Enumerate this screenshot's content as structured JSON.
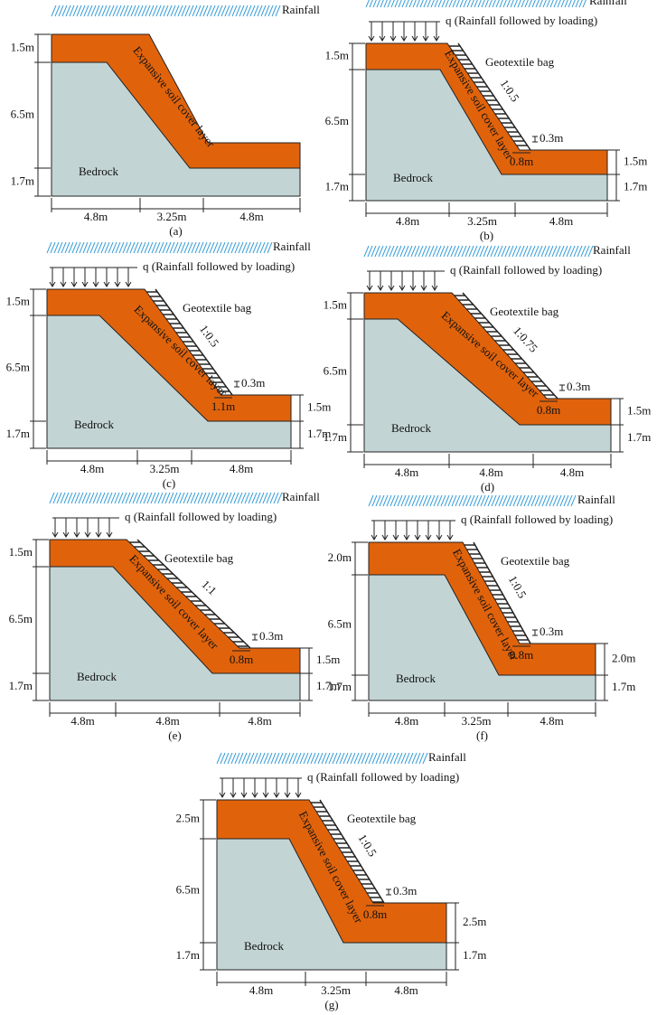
{
  "panels": [
    {
      "label": "(a)",
      "rainfall": "Rainfall",
      "left_dims": [
        "1.5m",
        "6.5m",
        "1.7m"
      ],
      "bottom_dims": [
        "4.8m",
        "3.25m",
        "4.8m"
      ],
      "bedrock": "Bedrock",
      "cover": "Expansive soil cover layer"
    },
    {
      "label": "(b)",
      "rainfall": "Rainfall",
      "loading": "q (Rainfall followed by loading)",
      "left_dims": [
        "1.5m",
        "6.5m",
        "1.7m"
      ],
      "right_dims": [
        "1.5m",
        "1.7m"
      ],
      "bottom_dims": [
        "4.8m",
        "3.25m",
        "4.8m"
      ],
      "bedrock": "Bedrock",
      "cover": "Expansive soil cover layer",
      "bag": "Geotextile bag",
      "slope_ratio": "1:0.5",
      "bag_thickness": "0.3m",
      "bag_width": "0.8m"
    },
    {
      "label": "(c)",
      "rainfall": "Rainfall",
      "loading": "q (Rainfall followed by loading)",
      "left_dims": [
        "1.5m",
        "6.5m",
        "1.7m"
      ],
      "right_dims": [
        "1.5m",
        "1.7m"
      ],
      "bottom_dims": [
        "4.8m",
        "3.25m",
        "4.8m"
      ],
      "bedrock": "Bedrock",
      "cover": "Expansive soil cover layer",
      "bag": "Geotextile bag",
      "slope_ratio": "1:0.5",
      "bag_thickness": "0.3m",
      "bag_width": "1.1m"
    },
    {
      "label": "(d)",
      "rainfall": "Rainfall",
      "loading": "q (Rainfall followed by loading)",
      "left_dims": [
        "1.5m",
        "6.5m",
        "1.7m"
      ],
      "right_dims": [
        "1.5m",
        "1.7m"
      ],
      "bottom_dims": [
        "4.8m",
        "4.8m",
        "4.8m"
      ],
      "bedrock": "Bedrock",
      "cover": "Expansive soil cover layer",
      "bag": "Geotextile bag",
      "slope_ratio": "1:0.75",
      "bag_thickness": "0.3m",
      "bag_width": "0.8m"
    },
    {
      "label": "(e)",
      "rainfall": "Rainfall",
      "loading": "q (Rainfall followed by loading)",
      "left_dims": [
        "1.5m",
        "6.5m",
        "1.7m"
      ],
      "right_dims": [
        "1.5m",
        "1.7m"
      ],
      "bottom_dims": [
        "4.8m",
        "4.8m",
        "4.8m"
      ],
      "bedrock": "Bedrock",
      "cover": "Expansive soil cover layer",
      "bag": "Geotextile bag",
      "slope_ratio": "1:1",
      "bag_thickness": "0.3m",
      "bag_width": "0.8m"
    },
    {
      "label": "(f)",
      "rainfall": "Rainfall",
      "loading": "q (Rainfall followed by loading)",
      "left_dims": [
        "2.0m",
        "6.5m",
        "1.7m"
      ],
      "right_dims": [
        "2.0m",
        "1.7m"
      ],
      "bottom_dims": [
        "4.8m",
        "3.25m",
        "4.8m"
      ],
      "bedrock": "Bedrock",
      "cover": "Expansive soil cover layer",
      "bag": "Geotextile bag",
      "slope_ratio": "1:0.5",
      "bag_thickness": "0.3m",
      "bag_width": "0.8m"
    },
    {
      "label": "(g)",
      "rainfall": "Rainfall",
      "loading": "q (Rainfall followed by loading)",
      "left_dims": [
        "2.5m",
        "6.5m",
        "1.7m"
      ],
      "right_dims": [
        "2.5m",
        "1.7m"
      ],
      "bottom_dims": [
        "4.8m",
        "3.25m",
        "4.8m"
      ],
      "bedrock": "Bedrock",
      "cover": "Expansive soil cover layer",
      "bag": "Geotextile bag",
      "slope_ratio": "1:0.5",
      "bag_thickness": "0.3m",
      "bag_width": "0.8m"
    }
  ]
}
